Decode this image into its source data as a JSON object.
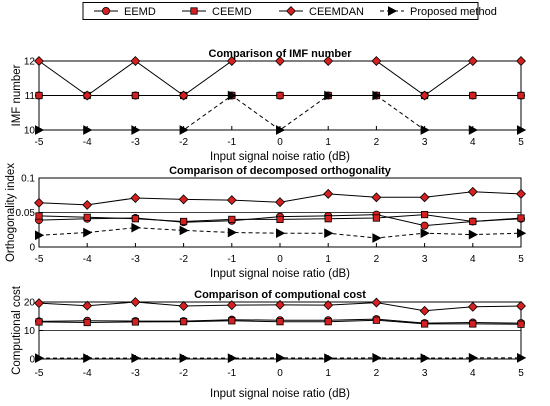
{
  "legend": {
    "items": [
      {
        "label": "EEMD",
        "marker": "circle",
        "dashed": false
      },
      {
        "label": "CEEMD",
        "marker": "square",
        "dashed": false
      },
      {
        "label": "CEEMDAN",
        "marker": "diamond",
        "dashed": false
      },
      {
        "label": "Proposed method",
        "marker": "triangle-right",
        "dashed": true
      }
    ]
  },
  "colors": {
    "marker_fill": "#d42020",
    "line": "#000000",
    "grid": "#000000",
    "background": "#ffffff"
  },
  "chart_data": [
    {
      "type": "line",
      "title": "Comparison of  IMF number",
      "xlabel": "Input signal noise ratio (dB)",
      "ylabel": "IMF number",
      "x": [
        -5,
        -4,
        -3,
        -2,
        -1,
        0,
        1,
        2,
        3,
        4,
        5
      ],
      "x_tick_labels": [
        "-5",
        "-4",
        "-3",
        "-2",
        "-1",
        "0",
        "1",
        "2",
        "3",
        "4",
        "5"
      ],
      "y_ticks": [
        10,
        11,
        12
      ],
      "y_tick_labels": [
        "10",
        "11",
        "12"
      ],
      "xlim": [
        -5,
        5
      ],
      "ylim": [
        10,
        12
      ],
      "grid": "horizontal",
      "series": [
        {
          "name": "EEMD",
          "values": [
            11,
            11,
            11,
            11,
            11,
            11,
            11,
            11,
            11,
            11,
            11
          ]
        },
        {
          "name": "CEEMD",
          "values": [
            11,
            11,
            11,
            11,
            11,
            11,
            11,
            11,
            11,
            11,
            11
          ]
        },
        {
          "name": "CEEMDAN",
          "values": [
            12,
            11,
            12,
            11,
            12,
            12,
            12,
            12,
            11,
            12,
            12
          ]
        },
        {
          "name": "Proposed method",
          "values": [
            10,
            10,
            10,
            10,
            11,
            10,
            11,
            11,
            10,
            10,
            10
          ]
        }
      ]
    },
    {
      "type": "line",
      "title": "Comparison of decomposed orthogonality",
      "xlabel": "Input signal noise ratio (dB)",
      "ylabel": "Orthogonality index",
      "x": [
        -5,
        -4,
        -3,
        -2,
        -1,
        0,
        1,
        2,
        3,
        4,
        5
      ],
      "x_tick_labels": [
        "-5",
        "-4",
        "-3",
        "-2",
        "-1",
        "0",
        "1",
        "2",
        "3",
        "4",
        "5"
      ],
      "y_ticks": [
        0,
        0.05,
        0.1
      ],
      "y_tick_labels": [
        "0",
        "0.05",
        "0.1"
      ],
      "xlim": [
        -5,
        5
      ],
      "ylim": [
        0,
        0.1
      ],
      "grid": "horizontal",
      "series": [
        {
          "name": "EEMD",
          "values": [
            0.039,
            0.041,
            0.042,
            0.036,
            0.038,
            0.044,
            0.045,
            0.047,
            0.031,
            0.037,
            0.041
          ]
        },
        {
          "name": "CEEMD",
          "values": [
            0.045,
            0.043,
            0.041,
            0.037,
            0.04,
            0.04,
            0.041,
            0.042,
            0.047,
            0.037,
            0.042
          ]
        },
        {
          "name": "CEEMDAN",
          "values": [
            0.064,
            0.061,
            0.071,
            0.069,
            0.068,
            0.065,
            0.077,
            0.072,
            0.072,
            0.08,
            0.077
          ]
        },
        {
          "name": "Proposed method",
          "values": [
            0.017,
            0.021,
            0.028,
            0.024,
            0.021,
            0.02,
            0.02,
            0.013,
            0.02,
            0.018,
            0.02
          ]
        }
      ]
    },
    {
      "type": "line",
      "title": "Comparison of computional cost",
      "xlabel": "Input signal noise ratio (dB)",
      "ylabel": "Computional cost",
      "x": [
        -5,
        -4,
        -3,
        -2,
        -1,
        0,
        1,
        2,
        3,
        4,
        5
      ],
      "x_tick_labels": [
        "-5",
        "-4",
        "-3",
        "-2",
        "-1",
        "0",
        "1",
        "2",
        "3",
        "4",
        "5"
      ],
      "y_ticks": [
        0,
        10,
        20
      ],
      "y_tick_labels": [
        "0",
        "10",
        "20"
      ],
      "xlim": [
        -5,
        5
      ],
      "ylim": [
        0,
        20
      ],
      "grid": "horizontal",
      "series": [
        {
          "name": "EEMD",
          "values": [
            13.2,
            13.4,
            13.3,
            13.3,
            13.8,
            13.6,
            13.6,
            14.0,
            12.6,
            12.8,
            12.6
          ]
        },
        {
          "name": "CEEMD",
          "values": [
            13.0,
            12.8,
            13.0,
            13.1,
            13.4,
            13.1,
            13.1,
            13.6,
            12.3,
            12.3,
            12.2
          ]
        },
        {
          "name": "CEEMDAN",
          "values": [
            19.6,
            18.7,
            20.0,
            18.6,
            18.9,
            19.0,
            18.9,
            19.8,
            16.9,
            18.3,
            18.6
          ]
        },
        {
          "name": "Proposed method",
          "values": [
            0.3,
            0.3,
            0.3,
            0.3,
            0.3,
            0.4,
            0.3,
            0.4,
            0.3,
            0.4,
            0.4
          ]
        }
      ]
    }
  ]
}
